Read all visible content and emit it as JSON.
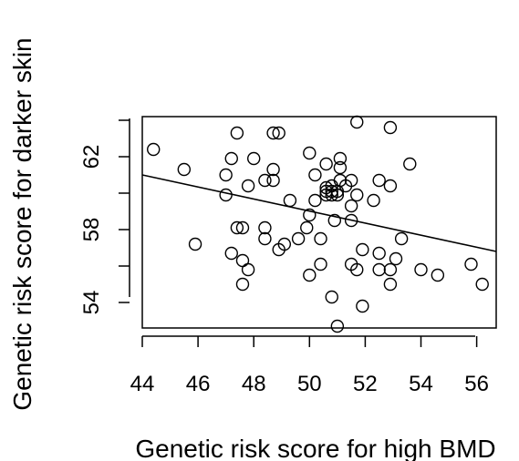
{
  "chart_data": {
    "type": "scatter",
    "title": "",
    "xlabel": "Genetic risk score for high BMD",
    "ylabel": "Genetic risk score for darker skin",
    "xlim": [
      44,
      56.7
    ],
    "ylim": [
      52.6,
      64.2
    ],
    "x_ticks": [
      44,
      46,
      48,
      50,
      52,
      54,
      56
    ],
    "y_ticks": [
      54,
      58,
      62
    ],
    "y_minor_ticks": [
      56,
      60,
      64
    ],
    "grid": false,
    "legend": "none",
    "regression_line": {
      "x": [
        44,
        56.7
      ],
      "y": [
        61.0,
        56.8
      ]
    },
    "series": [
      {
        "points": [
          [
            44.4,
            62.4
          ],
          [
            45.5,
            61.3
          ],
          [
            45.9,
            57.2
          ],
          [
            47.0,
            61.0
          ],
          [
            47.0,
            59.9
          ],
          [
            47.2,
            61.9
          ],
          [
            47.2,
            56.7
          ],
          [
            47.4,
            63.3
          ],
          [
            47.4,
            58.1
          ],
          [
            47.6,
            58.1
          ],
          [
            47.6,
            56.3
          ],
          [
            47.6,
            55.0
          ],
          [
            47.8,
            60.4
          ],
          [
            47.8,
            55.8
          ],
          [
            48.0,
            61.9
          ],
          [
            48.4,
            60.7
          ],
          [
            48.4,
            58.1
          ],
          [
            48.4,
            57.5
          ],
          [
            48.7,
            63.3
          ],
          [
            48.7,
            61.3
          ],
          [
            48.7,
            60.7
          ],
          [
            48.9,
            63.3
          ],
          [
            48.9,
            56.9
          ],
          [
            49.1,
            57.2
          ],
          [
            49.3,
            59.6
          ],
          [
            49.6,
            57.5
          ],
          [
            49.9,
            58.1
          ],
          [
            50.0,
            62.2
          ],
          [
            50.0,
            58.8
          ],
          [
            50.0,
            55.5
          ],
          [
            50.2,
            61.0
          ],
          [
            50.2,
            59.6
          ],
          [
            50.4,
            57.5
          ],
          [
            50.4,
            56.1
          ],
          [
            50.6,
            61.6
          ],
          [
            50.6,
            60.3
          ],
          [
            50.6,
            60.1
          ],
          [
            50.6,
            59.9
          ],
          [
            50.8,
            60.4
          ],
          [
            50.8,
            60.1
          ],
          [
            50.8,
            59.9
          ],
          [
            50.8,
            54.3
          ],
          [
            50.9,
            58.5
          ],
          [
            51.0,
            60.1
          ],
          [
            51.0,
            59.9
          ],
          [
            51.1,
            61.9
          ],
          [
            51.1,
            61.4
          ],
          [
            51.1,
            60.7
          ],
          [
            51.0,
            52.7
          ],
          [
            51.3,
            60.4
          ],
          [
            51.5,
            60.7
          ],
          [
            51.5,
            59.3
          ],
          [
            51.5,
            58.5
          ],
          [
            51.5,
            56.1
          ],
          [
            51.7,
            63.9
          ],
          [
            51.7,
            59.9
          ],
          [
            51.7,
            55.8
          ],
          [
            51.9,
            56.9
          ],
          [
            51.9,
            53.8
          ],
          [
            52.3,
            59.6
          ],
          [
            52.5,
            60.7
          ],
          [
            52.5,
            56.7
          ],
          [
            52.5,
            55.8
          ],
          [
            52.9,
            63.6
          ],
          [
            52.9,
            60.4
          ],
          [
            52.9,
            55.8
          ],
          [
            52.9,
            55.0
          ],
          [
            53.1,
            56.4
          ],
          [
            53.3,
            57.5
          ],
          [
            53.6,
            61.6
          ],
          [
            54.0,
            55.8
          ],
          [
            54.6,
            55.5
          ],
          [
            55.8,
            56.1
          ],
          [
            56.2,
            55.0
          ]
        ]
      }
    ]
  }
}
